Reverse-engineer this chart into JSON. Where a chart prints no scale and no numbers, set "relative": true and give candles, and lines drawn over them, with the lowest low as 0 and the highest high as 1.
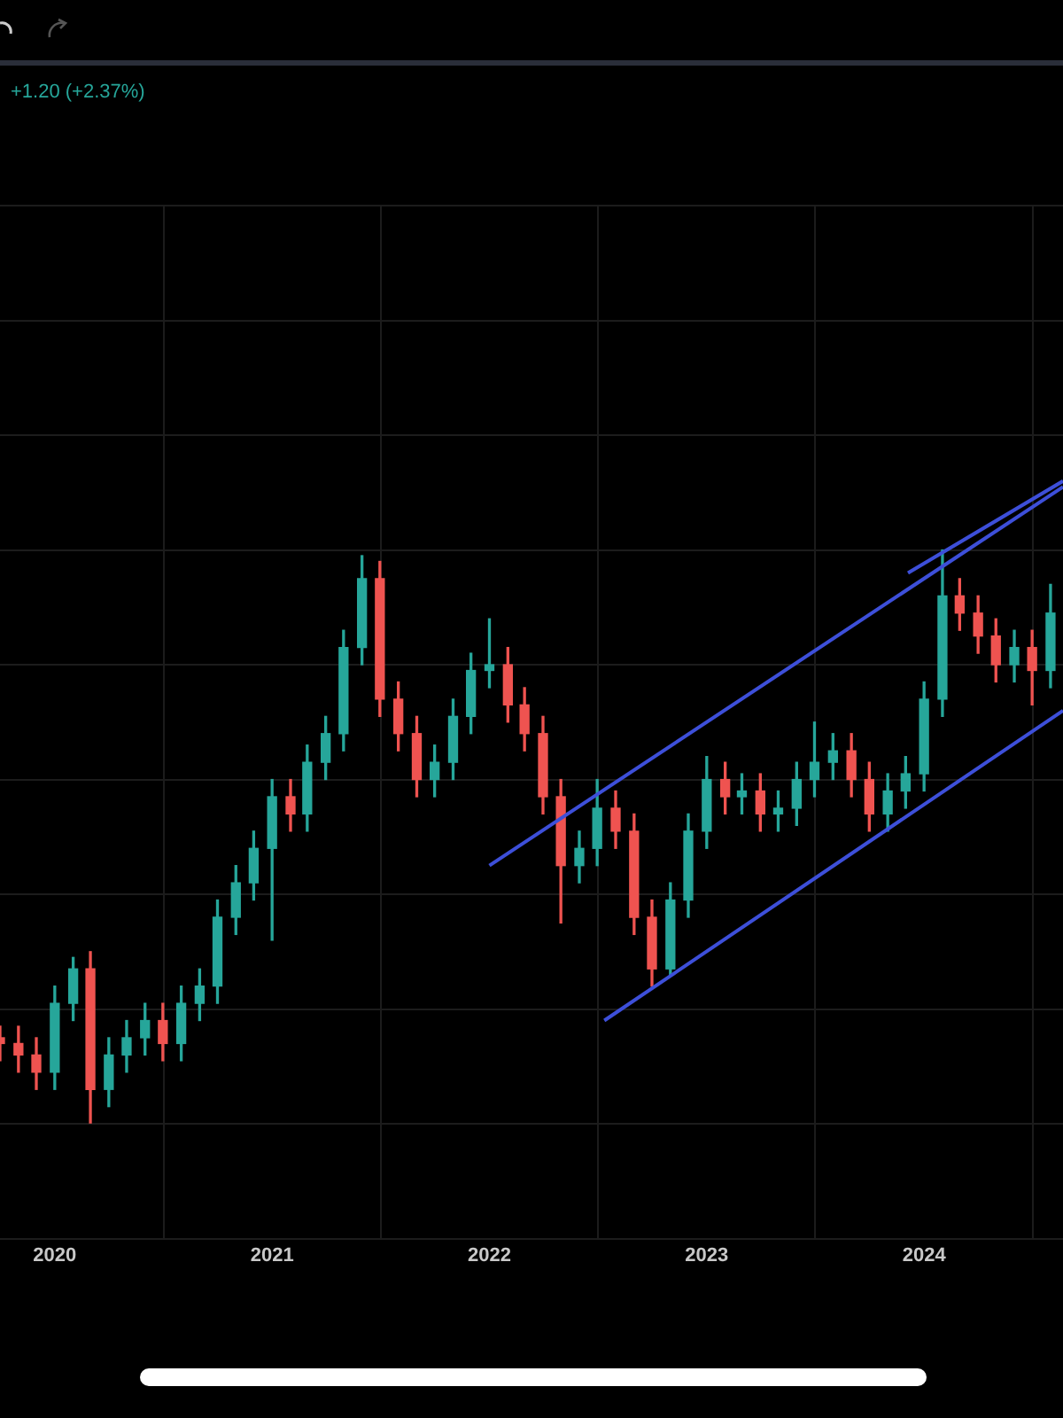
{
  "chart_data": {
    "type": "candlestick",
    "relative": true,
    "grid": true,
    "annotations": [
      "+1.20 (+2.37%)"
    ],
    "xlim": [
      "2019-10-01",
      "2024-08-22"
    ],
    "xticks": [
      "2020",
      "2021",
      "2022",
      "2023",
      "2024"
    ],
    "x": [
      "2019-10",
      "2019-11",
      "2019-12",
      "2020-01",
      "2020-02",
      "2020-03",
      "2020-04",
      "2020-05",
      "2020-06",
      "2020-07",
      "2020-08",
      "2020-09",
      "2020-10",
      "2020-11",
      "2020-12",
      "2021-01",
      "2021-02",
      "2021-03",
      "2021-04",
      "2021-05",
      "2021-06",
      "2021-07",
      "2021-08",
      "2021-09",
      "2021-10",
      "2021-11",
      "2021-12",
      "2022-01",
      "2022-02",
      "2022-03",
      "2022-04",
      "2022-05",
      "2022-06",
      "2022-07",
      "2022-08",
      "2022-09",
      "2022-10",
      "2022-11",
      "2022-12",
      "2023-01",
      "2023-02",
      "2023-03",
      "2023-04",
      "2023-05",
      "2023-06",
      "2023-07",
      "2023-08",
      "2023-09",
      "2023-10",
      "2023-11",
      "2023-12",
      "2024-01",
      "2024-02",
      "2024-03",
      "2024-04",
      "2024-05",
      "2024-06",
      "2024-07",
      "2024-08"
    ],
    "ohlc": [
      [
        0.15,
        0.17,
        0.11,
        0.14
      ],
      [
        0.14,
        0.17,
        0.09,
        0.12
      ],
      [
        0.12,
        0.15,
        0.06,
        0.09
      ],
      [
        0.09,
        0.24,
        0.06,
        0.21
      ],
      [
        0.21,
        0.29,
        0.18,
        0.27
      ],
      [
        0.27,
        0.3,
        0,
        0.06
      ],
      [
        0.06,
        0.15,
        0.03,
        0.12
      ],
      [
        0.12,
        0.18,
        0.09,
        0.15
      ],
      [
        0.15,
        0.21,
        0.12,
        0.18
      ],
      [
        0.18,
        0.21,
        0.11,
        0.14
      ],
      [
        0.14,
        0.24,
        0.11,
        0.21
      ],
      [
        0.21,
        0.27,
        0.18,
        0.24
      ],
      [
        0.24,
        0.39,
        0.21,
        0.36
      ],
      [
        0.36,
        0.45,
        0.33,
        0.42
      ],
      [
        0.42,
        0.51,
        0.39,
        0.48
      ],
      [
        0.48,
        0.6,
        0.32,
        0.57
      ],
      [
        0.57,
        0.6,
        0.51,
        0.54
      ],
      [
        0.54,
        0.66,
        0.51,
        0.63
      ],
      [
        0.63,
        0.71,
        0.6,
        0.68
      ],
      [
        0.68,
        0.86,
        0.65,
        0.83
      ],
      [
        0.83,
        0.99,
        0.8,
        0.95
      ],
      [
        0.95,
        0.98,
        0.71,
        0.74
      ],
      [
        0.74,
        0.77,
        0.65,
        0.68
      ],
      [
        0.68,
        0.71,
        0.57,
        0.6
      ],
      [
        0.6,
        0.66,
        0.57,
        0.63
      ],
      [
        0.63,
        0.74,
        0.6,
        0.71
      ],
      [
        0.71,
        0.82,
        0.68,
        0.79
      ],
      [
        0.79,
        0.88,
        0.76,
        0.8
      ],
      [
        0.8,
        0.83,
        0.7,
        0.73
      ],
      [
        0.73,
        0.76,
        0.65,
        0.68
      ],
      [
        0.68,
        0.71,
        0.54,
        0.57
      ],
      [
        0.57,
        0.6,
        0.35,
        0.45
      ],
      [
        0.45,
        0.51,
        0.42,
        0.48
      ],
      [
        0.48,
        0.6,
        0.45,
        0.55
      ],
      [
        0.55,
        0.58,
        0.48,
        0.51
      ],
      [
        0.51,
        0.54,
        0.33,
        0.36
      ],
      [
        0.36,
        0.39,
        0.24,
        0.27
      ],
      [
        0.27,
        0.42,
        0.26,
        0.39
      ],
      [
        0.39,
        0.54,
        0.36,
        0.51
      ],
      [
        0.51,
        0.64,
        0.48,
        0.6
      ],
      [
        0.6,
        0.63,
        0.54,
        0.57
      ],
      [
        0.57,
        0.61,
        0.54,
        0.58
      ],
      [
        0.58,
        0.61,
        0.51,
        0.54
      ],
      [
        0.54,
        0.58,
        0.51,
        0.55
      ],
      [
        0.55,
        0.63,
        0.52,
        0.6
      ],
      [
        0.6,
        0.7,
        0.57,
        0.63
      ],
      [
        0.63,
        0.68,
        0.6,
        0.65
      ],
      [
        0.65,
        0.68,
        0.57,
        0.6
      ],
      [
        0.6,
        0.63,
        0.51,
        0.54
      ],
      [
        0.54,
        0.61,
        0.51,
        0.58
      ],
      [
        0.58,
        0.64,
        0.55,
        0.61
      ],
      [
        0.61,
        0.77,
        0.58,
        0.74
      ],
      [
        0.74,
        1,
        0.71,
        0.92
      ],
      [
        0.92,
        0.95,
        0.86,
        0.89
      ],
      [
        0.89,
        0.92,
        0.82,
        0.85
      ],
      [
        0.85,
        0.88,
        0.77,
        0.8
      ],
      [
        0.8,
        0.86,
        0.77,
        0.83
      ],
      [
        0.83,
        0.86,
        0.73,
        0.79
      ],
      [
        0.79,
        0.94,
        0.76,
        0.89
      ]
    ],
    "colors": [
      "#ef5350",
      "#ef5350",
      "#ef5350",
      "#26a69a",
      "#26a69a",
      "#ef5350",
      "#26a69a",
      "#26a69a",
      "#26a69a",
      "#ef5350",
      "#26a69a",
      "#26a69a",
      "#26a69a",
      "#26a69a",
      "#26a69a",
      "#26a69a",
      "#ef5350",
      "#26a69a",
      "#26a69a",
      "#26a69a",
      "#26a69a",
      "#ef5350",
      "#ef5350",
      "#ef5350",
      "#26a69a",
      "#26a69a",
      "#26a69a",
      "#26a69a",
      "#ef5350",
      "#ef5350",
      "#ef5350",
      "#ef5350",
      "#26a69a",
      "#26a69a",
      "#ef5350",
      "#ef5350",
      "#ef5350",
      "#26a69a",
      "#26a69a",
      "#26a69a",
      "#ef5350",
      "#26a69a",
      "#ef5350",
      "#26a69a",
      "#26a69a",
      "#26a69a",
      "#26a69a",
      "#ef5350",
      "#ef5350",
      "#26a69a",
      "#26a69a",
      "#26a69a",
      "#26a69a",
      "#ef5350",
      "#ef5350",
      "#ef5350",
      "#26a69a",
      "#ef5350",
      "#26a69a"
    ],
    "series": [
      {
        "type": "line",
        "color": "#3d4fd9",
        "x": [
          "2022-01-01",
          "2024-08-22"
        ],
        "values": [
          0.45,
          1.11
        ]
      },
      {
        "type": "line",
        "color": "#3d4fd9",
        "x": [
          "2022-07-13",
          "2024-08-22"
        ],
        "values": [
          0.18,
          0.72
        ]
      },
      {
        "type": "line",
        "color": "#3d4fd9",
        "x": [
          "2023-12-05",
          "2024-08-22"
        ],
        "values": [
          0.96,
          1.12
        ]
      }
    ]
  }
}
